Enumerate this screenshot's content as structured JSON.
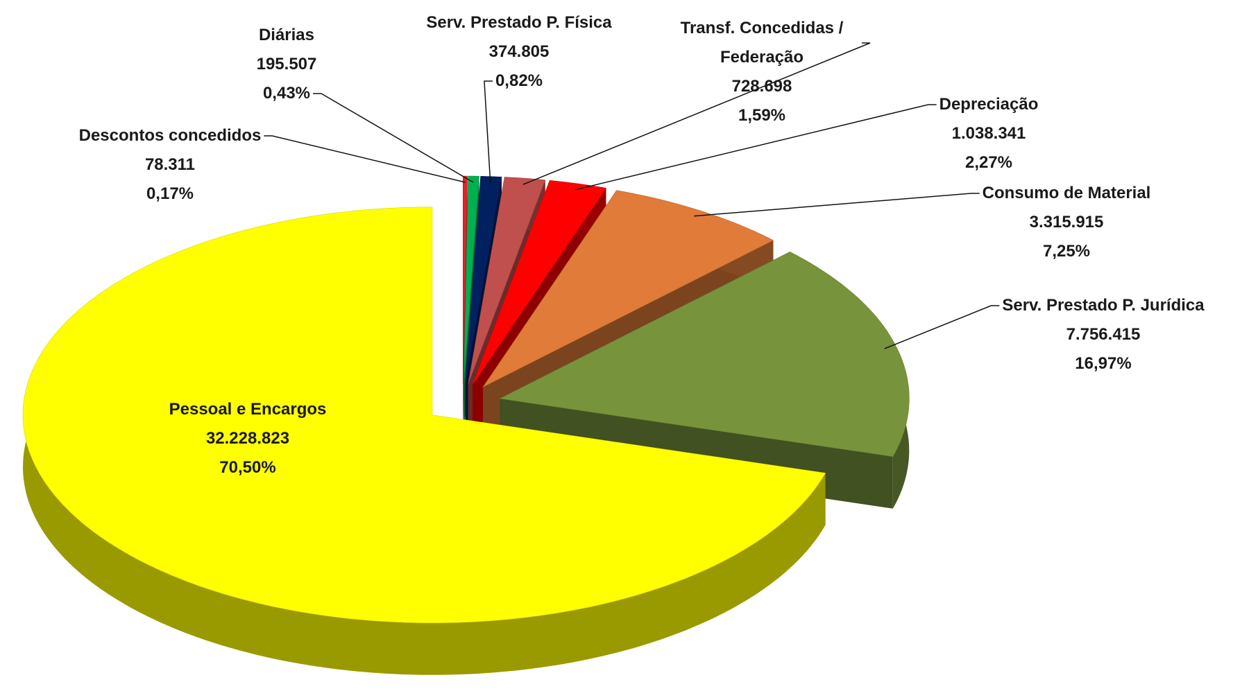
{
  "chart_data": {
    "type": "pie3d",
    "categories": [
      "Descontos concedidos",
      "Diárias",
      "Serv. Prestado P. Física",
      "Transf.  Concedidas / Federação",
      "Depreciação",
      "Consumo de Material",
      "Serv. Prestado P. Jurídica",
      "Pessoal  e Encargos"
    ],
    "values": [
      78311,
      195507,
      374805,
      728698,
      1038341,
      3315915,
      7756415,
      32228823
    ],
    "value_labels": [
      "78.311",
      "195.507",
      "374.805",
      "728.698",
      "1.038.341",
      "3.315.915",
      "7.756.415",
      "32.228.823"
    ],
    "percents": [
      0.17,
      0.43,
      0.82,
      1.59,
      2.27,
      7.25,
      16.97,
      70.5
    ],
    "percent_labels": [
      "0,17%",
      "0,43%",
      "0,82%",
      "1,59%",
      "2,27%",
      "7,25%",
      "16,97%",
      "70,50%"
    ],
    "colors": [
      "#e8202a",
      "#00b050",
      "#002060",
      "#c0504d",
      "#ff0000",
      "#e07b39",
      "#77933c",
      "#ffff00"
    ]
  }
}
